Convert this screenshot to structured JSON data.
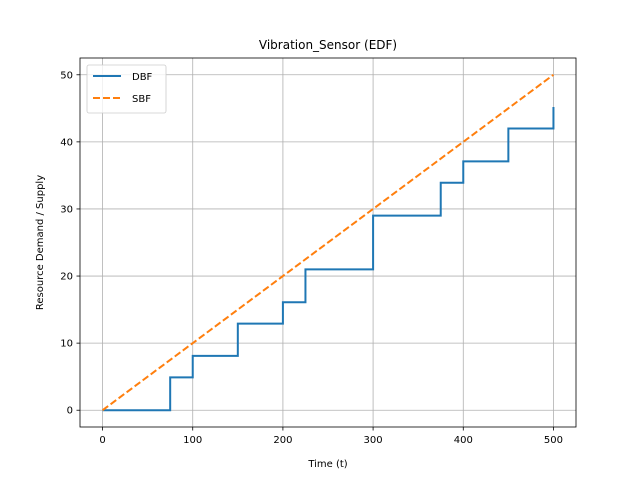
{
  "chart_data": {
    "type": "line",
    "title": "Vibration_Sensor (EDF)",
    "xlabel": "Time (t)",
    "ylabel": "Resource Demand / Supply",
    "xlim": [
      -25,
      525
    ],
    "ylim": [
      -2.5,
      52.5
    ],
    "xticks": [
      0,
      100,
      200,
      300,
      400,
      500
    ],
    "yticks": [
      0,
      10,
      20,
      30,
      40,
      50
    ],
    "grid": true,
    "legend_position": "upper-left",
    "series": [
      {
        "name": "DBF",
        "style": "solid",
        "step": true,
        "color": "#1f77b4",
        "points": [
          [
            0,
            0
          ],
          [
            75,
            0
          ],
          [
            75,
            4.9
          ],
          [
            100,
            4.9
          ],
          [
            100,
            8.1
          ],
          [
            150,
            8.1
          ],
          [
            150,
            12.9
          ],
          [
            200,
            12.9
          ],
          [
            200,
            16.1
          ],
          [
            225,
            16.1
          ],
          [
            225,
            21
          ],
          [
            300,
            21
          ],
          [
            300,
            29
          ],
          [
            375,
            29
          ],
          [
            375,
            33.9
          ],
          [
            400,
            33.9
          ],
          [
            400,
            37.1
          ],
          [
            450,
            37.1
          ],
          [
            450,
            42
          ],
          [
            500,
            42
          ],
          [
            500,
            45.2
          ]
        ]
      },
      {
        "name": "SBF",
        "style": "dashed",
        "step": false,
        "color": "#ff7f0e",
        "points": [
          [
            0,
            0
          ],
          [
            500,
            50
          ]
        ]
      }
    ]
  }
}
